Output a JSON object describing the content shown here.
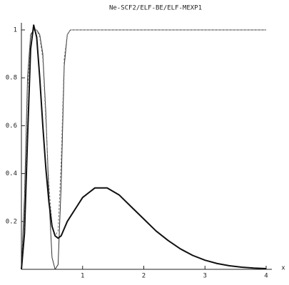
{
  "chart_data": {
    "type": "line",
    "title": "Ne-SCF2/ELF-BE/ELF-MEXP1",
    "xlabel": "x",
    "x": [
      0,
      0.05,
      0.1,
      0.15,
      0.2,
      0.25,
      0.3,
      0.35,
      0.4,
      0.45,
      0.5,
      0.55,
      0.6,
      0.65,
      0.7,
      0.75,
      0.8,
      0.9,
      1,
      1.2,
      1.4,
      1.6,
      1.8,
      2,
      2.2,
      2.4,
      2.6,
      2.8,
      3,
      3.2,
      3.4,
      3.6,
      3.8,
      4
    ],
    "series": [
      {
        "color": "#333333",
        "style": "thin",
        "values": [
          0,
          0.3,
          0.8,
          0.98,
          1.0,
          1.0,
          0.98,
          0.9,
          0.65,
          0.3,
          0.05,
          0.0,
          0.02,
          0.35,
          0.85,
          0.98,
          1,
          1,
          1,
          1,
          1,
          1,
          1,
          1,
          1,
          1,
          1,
          1,
          1,
          1,
          1,
          1,
          1,
          1
        ]
      },
      {
        "color": "#777777",
        "style": "dashed",
        "values": [
          0,
          0.25,
          0.75,
          0.97,
          1.0,
          1.0,
          0.97,
          0.88,
          0.62,
          0.35,
          0.18,
          0.14,
          0.16,
          0.45,
          0.88,
          0.98,
          1,
          1,
          1,
          1,
          1,
          1,
          1,
          1,
          1,
          1,
          1,
          1,
          1,
          1,
          1,
          1,
          1,
          1
        ]
      },
      {
        "color": "#111111",
        "style": "thick",
        "values": [
          0,
          0.15,
          0.55,
          0.92,
          1.02,
          0.97,
          0.8,
          0.6,
          0.42,
          0.28,
          0.18,
          0.14,
          0.13,
          0.14,
          0.17,
          0.2,
          0.22,
          0.26,
          0.3,
          0.34,
          0.34,
          0.31,
          0.26,
          0.21,
          0.16,
          0.12,
          0.085,
          0.058,
          0.038,
          0.024,
          0.015,
          0.009,
          0.005,
          0.003
        ]
      }
    ],
    "xlim": [
      0,
      4
    ],
    "ylim": [
      0,
      1
    ],
    "xticks": [
      1,
      2,
      3,
      4
    ],
    "yticks": [
      0.2,
      0.4,
      0.6,
      0.8,
      1
    ]
  }
}
